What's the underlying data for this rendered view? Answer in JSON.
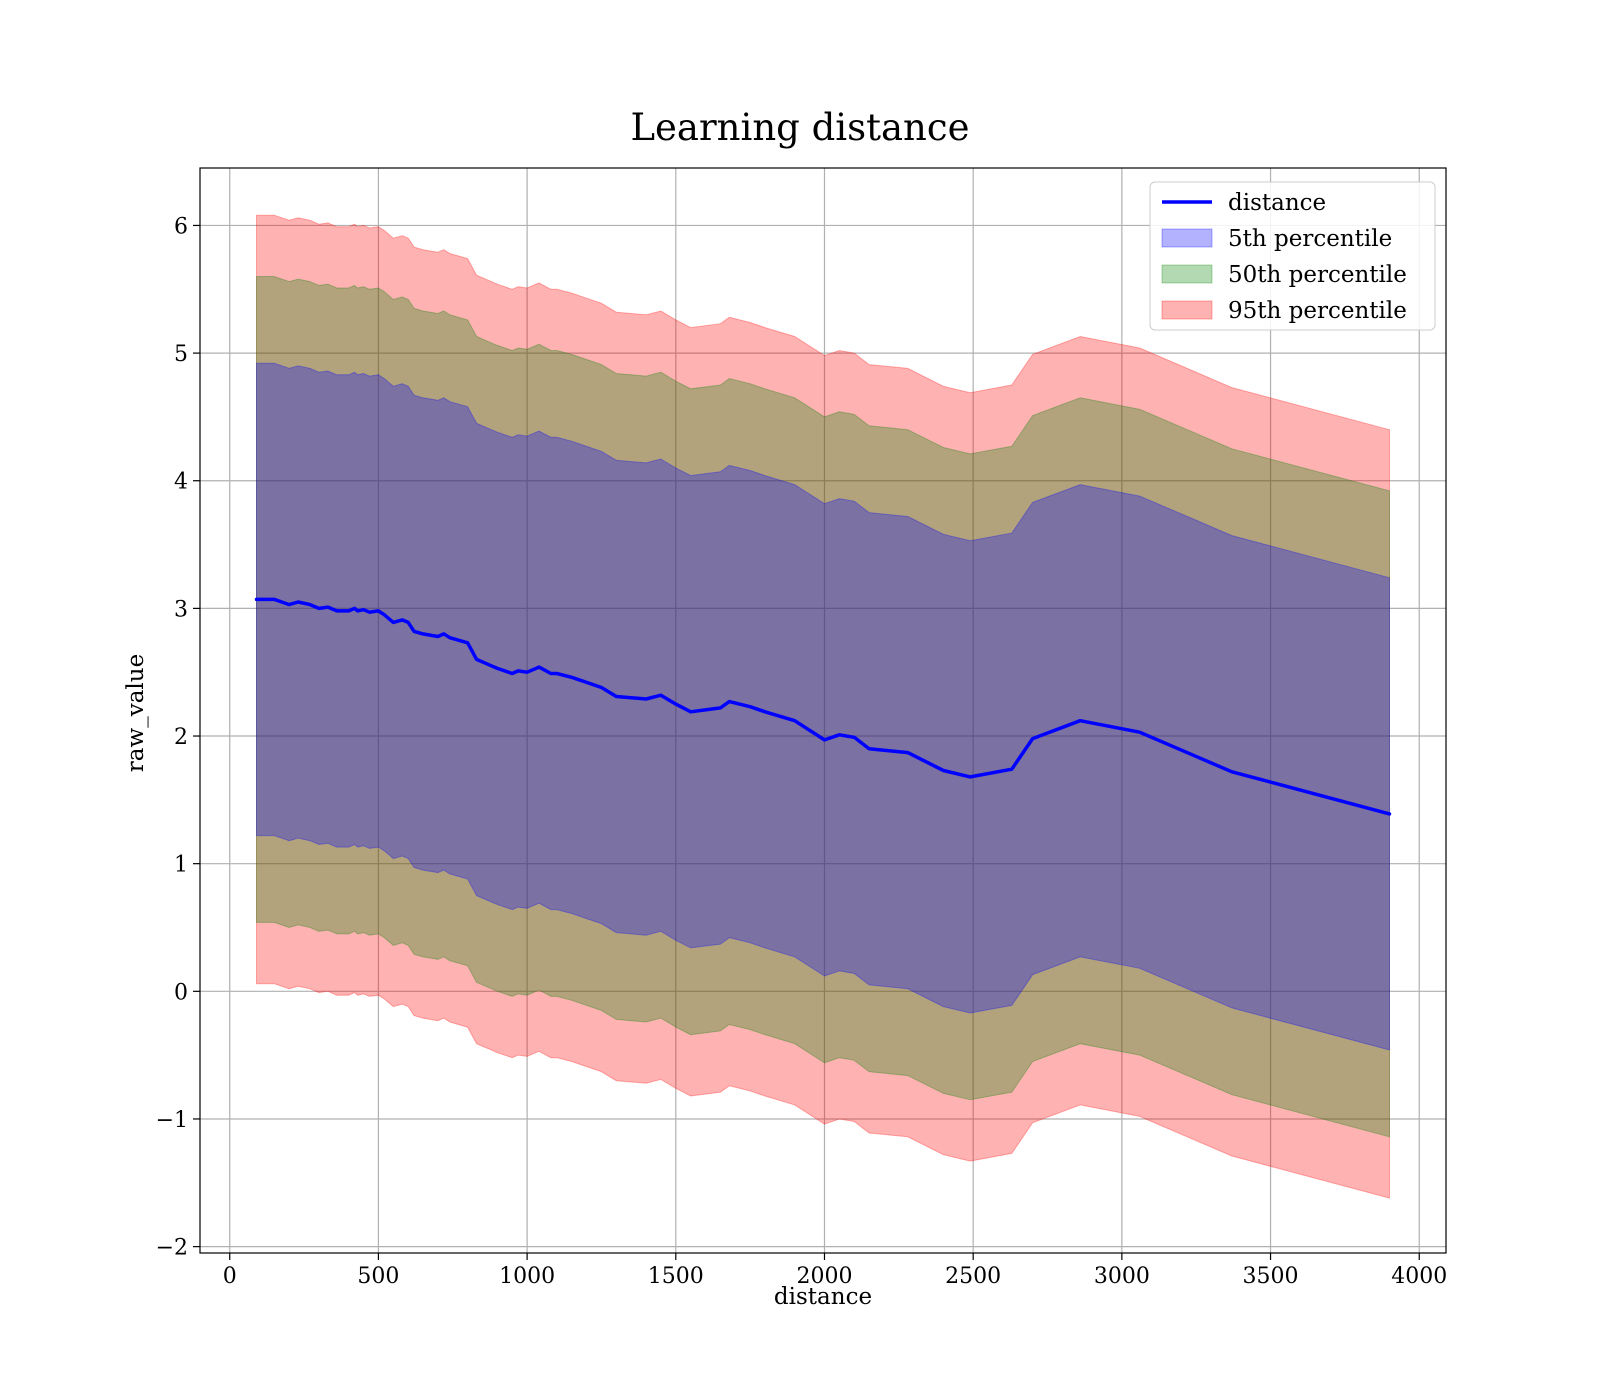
{
  "chart_data": {
    "type": "area",
    "title": "Learning distance",
    "xlabel": "distance",
    "ylabel": "raw_value",
    "xlim": [
      -100,
      4090
    ],
    "ylim": [
      -2.05,
      6.45
    ],
    "xticks": [
      0,
      500,
      1000,
      1500,
      2000,
      2500,
      3000,
      3500,
      4000
    ],
    "yticks": [
      -2,
      -1,
      0,
      1,
      2,
      3,
      4,
      5,
      6
    ],
    "ytick_labels": [
      "−2",
      "−1",
      "0",
      "1",
      "2",
      "3",
      "4",
      "5",
      "6"
    ],
    "grid": true,
    "legend_position": "top-right",
    "legend": [
      "distance",
      "5th percentile",
      "50th percentile",
      "95th percentile"
    ],
    "x": [
      90,
      150,
      200,
      230,
      270,
      300,
      330,
      360,
      400,
      420,
      430,
      450,
      470,
      500,
      520,
      550,
      580,
      600,
      620,
      650,
      700,
      720,
      740,
      800,
      830,
      880,
      900,
      950,
      970,
      1000,
      1040,
      1080,
      1100,
      1150,
      1200,
      1250,
      1300,
      1350,
      1400,
      1450,
      1500,
      1550,
      1650,
      1680,
      1750,
      1800,
      1900,
      2000,
      2050,
      2100,
      2150,
      2280,
      2400,
      2490,
      2630,
      2700,
      2860,
      3060,
      3240,
      3370,
      3900
    ],
    "series": [
      {
        "name": "distance",
        "color": "#0000ff",
        "values": [
          3.07,
          3.07,
          3.03,
          3.05,
          3.03,
          3.0,
          3.01,
          2.98,
          2.98,
          3.0,
          2.98,
          2.99,
          2.97,
          2.98,
          2.95,
          2.89,
          2.91,
          2.89,
          2.82,
          2.8,
          2.78,
          2.8,
          2.77,
          2.73,
          2.6,
          2.55,
          2.53,
          2.49,
          2.51,
          2.5,
          2.54,
          2.49,
          2.49,
          2.46,
          2.42,
          2.38,
          2.31,
          2.3,
          2.29,
          2.32,
          2.25,
          2.19,
          2.22,
          2.27,
          2.23,
          2.19,
          2.12,
          1.97,
          2.01,
          1.99,
          1.9,
          1.87,
          1.73,
          1.68,
          1.74,
          1.98,
          2.12,
          2.03,
          1.85,
          1.72,
          1.39
        ]
      },
      {
        "name": "5th percentile",
        "color": "#0000ff",
        "offset": 1.85
      },
      {
        "name": "50th percentile",
        "color": "#008000",
        "offset": 2.53
      },
      {
        "name": "95th percentile",
        "color": "#ff0000",
        "offset": 3.01
      }
    ]
  }
}
